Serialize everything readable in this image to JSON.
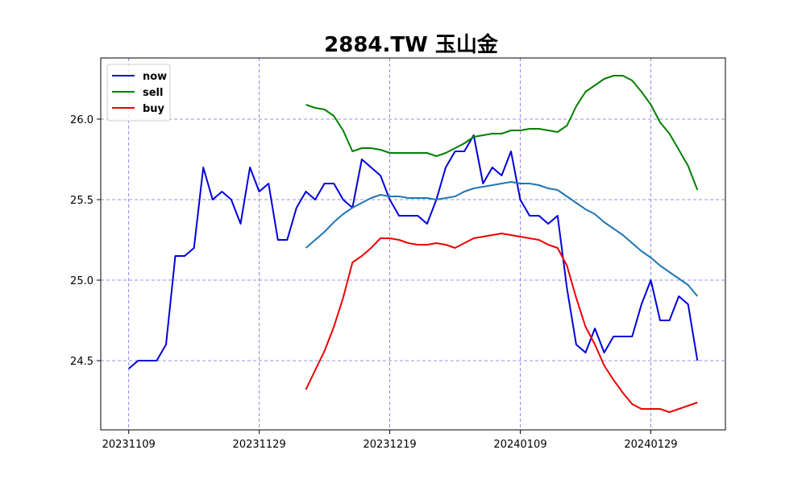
{
  "chart_data": {
    "type": "line",
    "title": "2884.TW 玉山金",
    "xlabel": "",
    "ylabel": "",
    "x_tick_labels": [
      "20231109",
      "20231129",
      "20231219",
      "20240109",
      "20240129"
    ],
    "y_tick_labels": [
      "24.5",
      "25.0",
      "25.5",
      "26.0"
    ],
    "y_ticks": [
      24.5,
      25.0,
      25.5,
      26.0
    ],
    "xlim": [
      -3,
      64
    ],
    "ylim": [
      24.07,
      26.38
    ],
    "grid": true,
    "legend_position": "top-left",
    "series": [
      {
        "name": "now",
        "color": "#0000dd",
        "points": [
          [
            0,
            24.45
          ],
          [
            1,
            24.5
          ],
          [
            2,
            24.5
          ],
          [
            3,
            24.5
          ],
          [
            4,
            24.6
          ],
          [
            5,
            25.15
          ],
          [
            6,
            25.15
          ],
          [
            7,
            25.2
          ],
          [
            8,
            25.7
          ],
          [
            9,
            25.5
          ],
          [
            10,
            25.55
          ],
          [
            11,
            25.5
          ],
          [
            12,
            25.35
          ],
          [
            13,
            25.7
          ],
          [
            14,
            25.55
          ],
          [
            15,
            25.6
          ],
          [
            16,
            25.25
          ],
          [
            17,
            25.25
          ],
          [
            18,
            25.45
          ],
          [
            19,
            25.55
          ],
          [
            20,
            25.5
          ],
          [
            21,
            25.6
          ],
          [
            22,
            25.6
          ],
          [
            23,
            25.5
          ],
          [
            24,
            25.45
          ],
          [
            25,
            25.75
          ],
          [
            26,
            25.7
          ],
          [
            27,
            25.65
          ],
          [
            28,
            25.5
          ],
          [
            29,
            25.4
          ],
          [
            30,
            25.4
          ],
          [
            31,
            25.4
          ],
          [
            32,
            25.35
          ],
          [
            33,
            25.5
          ],
          [
            34,
            25.7
          ],
          [
            35,
            25.8
          ],
          [
            36,
            25.8
          ],
          [
            37,
            25.9
          ],
          [
            38,
            25.6
          ],
          [
            39,
            25.7
          ],
          [
            40,
            25.65
          ],
          [
            41,
            25.8
          ],
          [
            42,
            25.5
          ],
          [
            43,
            25.4
          ],
          [
            44,
            25.4
          ],
          [
            45,
            25.35
          ],
          [
            46,
            25.4
          ],
          [
            47,
            24.95
          ],
          [
            48,
            24.6
          ],
          [
            49,
            24.55
          ],
          [
            50,
            24.7
          ],
          [
            51,
            24.55
          ],
          [
            52,
            24.65
          ],
          [
            53,
            24.65
          ],
          [
            54,
            24.65
          ],
          [
            55,
            24.85
          ],
          [
            56,
            25.0
          ],
          [
            57,
            24.75
          ],
          [
            58,
            24.75
          ],
          [
            59,
            24.9
          ],
          [
            60,
            24.85
          ],
          [
            61,
            24.5
          ]
        ]
      },
      {
        "name": "sell",
        "color": "#008000",
        "points": [
          [
            19,
            26.09
          ],
          [
            20,
            26.07
          ],
          [
            21,
            26.06
          ],
          [
            22,
            26.02
          ],
          [
            23,
            25.93
          ],
          [
            24,
            25.8
          ],
          [
            25,
            25.82
          ],
          [
            26,
            25.82
          ],
          [
            27,
            25.81
          ],
          [
            28,
            25.79
          ],
          [
            29,
            25.79
          ],
          [
            30,
            25.79
          ],
          [
            31,
            25.79
          ],
          [
            32,
            25.79
          ],
          [
            33,
            25.77
          ],
          [
            34,
            25.79
          ],
          [
            35,
            25.82
          ],
          [
            36,
            25.85
          ],
          [
            37,
            25.89
          ],
          [
            38,
            25.9
          ],
          [
            39,
            25.91
          ],
          [
            40,
            25.91
          ],
          [
            41,
            25.93
          ],
          [
            42,
            25.93
          ],
          [
            43,
            25.94
          ],
          [
            44,
            25.94
          ],
          [
            45,
            25.93
          ],
          [
            46,
            25.92
          ],
          [
            47,
            25.96
          ],
          [
            48,
            26.08
          ],
          [
            49,
            26.17
          ],
          [
            50,
            26.21
          ],
          [
            51,
            26.25
          ],
          [
            52,
            26.27
          ],
          [
            53,
            26.27
          ],
          [
            54,
            26.24
          ],
          [
            55,
            26.17
          ],
          [
            56,
            26.09
          ],
          [
            57,
            25.98
          ],
          [
            58,
            25.91
          ],
          [
            59,
            25.81
          ],
          [
            60,
            25.71
          ],
          [
            61,
            25.56
          ]
        ]
      },
      {
        "name": "buy",
        "color": "#ee0000",
        "points": [
          [
            19,
            24.32
          ],
          [
            20,
            24.44
          ],
          [
            21,
            24.56
          ],
          [
            22,
            24.71
          ],
          [
            23,
            24.89
          ],
          [
            24,
            25.11
          ],
          [
            25,
            25.15
          ],
          [
            26,
            25.2
          ],
          [
            27,
            25.26
          ],
          [
            28,
            25.26
          ],
          [
            29,
            25.25
          ],
          [
            30,
            25.23
          ],
          [
            31,
            25.22
          ],
          [
            32,
            25.22
          ],
          [
            33,
            25.23
          ],
          [
            34,
            25.22
          ],
          [
            35,
            25.2
          ],
          [
            36,
            25.23
          ],
          [
            37,
            25.26
          ],
          [
            38,
            25.27
          ],
          [
            39,
            25.28
          ],
          [
            40,
            25.29
          ],
          [
            41,
            25.28
          ],
          [
            42,
            25.27
          ],
          [
            43,
            25.26
          ],
          [
            44,
            25.25
          ],
          [
            45,
            25.22
          ],
          [
            46,
            25.2
          ],
          [
            47,
            25.09
          ],
          [
            48,
            24.89
          ],
          [
            49,
            24.71
          ],
          [
            50,
            24.6
          ],
          [
            51,
            24.47
          ],
          [
            52,
            24.38
          ],
          [
            53,
            24.3
          ],
          [
            54,
            24.23
          ],
          [
            55,
            24.2
          ],
          [
            56,
            24.2
          ],
          [
            57,
            24.2
          ],
          [
            58,
            24.18
          ],
          [
            59,
            24.2
          ],
          [
            60,
            24.22
          ],
          [
            61,
            24.24
          ]
        ]
      },
      {
        "color": "#1f77b4",
        "points": [
          [
            19,
            25.2
          ],
          [
            20,
            25.25
          ],
          [
            21,
            25.3
          ],
          [
            22,
            25.36
          ],
          [
            23,
            25.41
          ],
          [
            24,
            25.45
          ],
          [
            25,
            25.48
          ],
          [
            26,
            25.51
          ],
          [
            27,
            25.53
          ],
          [
            28,
            25.52
          ],
          [
            29,
            25.52
          ],
          [
            30,
            25.51
          ],
          [
            31,
            25.51
          ],
          [
            32,
            25.51
          ],
          [
            33,
            25.5
          ],
          [
            34,
            25.51
          ],
          [
            35,
            25.52
          ],
          [
            36,
            25.55
          ],
          [
            37,
            25.57
          ],
          [
            38,
            25.58
          ],
          [
            39,
            25.59
          ],
          [
            40,
            25.6
          ],
          [
            41,
            25.61
          ],
          [
            42,
            25.6
          ],
          [
            43,
            25.6
          ],
          [
            44,
            25.59
          ],
          [
            45,
            25.57
          ],
          [
            46,
            25.56
          ],
          [
            47,
            25.52
          ],
          [
            48,
            25.48
          ],
          [
            49,
            25.44
          ],
          [
            50,
            25.41
          ],
          [
            51,
            25.36
          ],
          [
            52,
            25.32
          ],
          [
            53,
            25.28
          ],
          [
            54,
            25.23
          ],
          [
            55,
            25.18
          ],
          [
            56,
            25.14
          ],
          [
            57,
            25.09
          ],
          [
            58,
            25.05
          ],
          [
            59,
            25.01
          ],
          [
            60,
            24.97
          ],
          [
            61,
            24.9
          ]
        ]
      }
    ]
  }
}
